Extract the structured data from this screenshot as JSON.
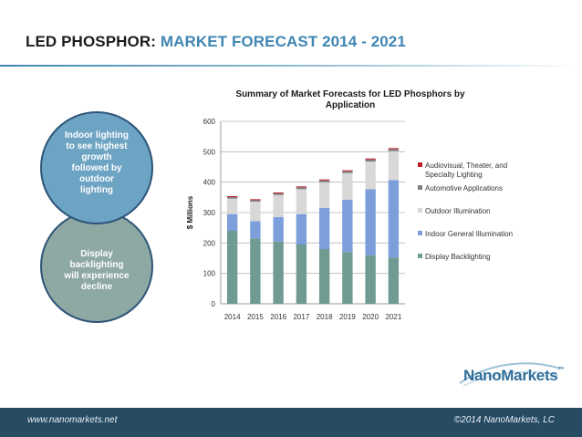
{
  "slide": {
    "title_prefix": "LED PHOSPHOR:",
    "title_suffix": "MARKET FORECAST  2014 - 2021",
    "bubble_top": "Indoor lighting to see highest growth followed by outdoor lighting",
    "bubble_bottom": "Display backlighting will experience decline",
    "logo": "NanoMarkets",
    "logo_mark": "™",
    "footer_left": "www.nanomarkets.net",
    "footer_right": "©2014 NanoMarkets, LC"
  },
  "colors": {
    "accent": "#3f86b3",
    "footer": "#264b63",
    "display": "#6f9b93",
    "indoor": "#7c9fdb",
    "outdoor": "#d8d8d8",
    "automotive": "#7f7f7f",
    "audiovisual": "#c0202a"
  },
  "chart_data": {
    "type": "bar",
    "stacked": true,
    "title": "Summary of Market Forecasts for LED Phosphors by Application",
    "title_lines": [
      "Summary of Market Forecasts for LED Phosphors by",
      "Application"
    ],
    "ylabel": "$ Millions",
    "xlabel": "",
    "ylim": [
      0,
      600
    ],
    "yticks": [
      0,
      100,
      200,
      300,
      400,
      500,
      600
    ],
    "categories": [
      "2014",
      "2015",
      "2016",
      "2017",
      "2018",
      "2019",
      "2020",
      "2021"
    ],
    "grid": true,
    "legend_position": "right",
    "series": [
      {
        "name": "Display Backlighting",
        "color": "#6f9b93",
        "values": [
          240,
          215,
          205,
          195,
          180,
          170,
          160,
          152
        ]
      },
      {
        "name": "Indoor General Illumination",
        "color": "#7c9fdb",
        "values": [
          55,
          57,
          80,
          100,
          135,
          172,
          217,
          255
        ]
      },
      {
        "name": "Outdoor Illumination",
        "color": "#d8d8d8",
        "values": [
          51,
          64,
          73,
          82,
          85,
          88,
          91,
          95
        ]
      },
      {
        "name": "Automotive Applications",
        "color": "#7f7f7f",
        "values": [
          5,
          5,
          5,
          6,
          6,
          6,
          7,
          7
        ]
      },
      {
        "name": "Audiovisual, Theater, and Specialty Lighting",
        "color": "#c0202a",
        "values": [
          3,
          3,
          3,
          3,
          3,
          3,
          3,
          3
        ]
      }
    ],
    "legend_order": [
      "Audiovisual, Theater, and Specialty Lighting",
      "Automotive Applications",
      "Outdoor Illumination",
      "Indoor General Illumination",
      "Display Backlighting"
    ]
  }
}
